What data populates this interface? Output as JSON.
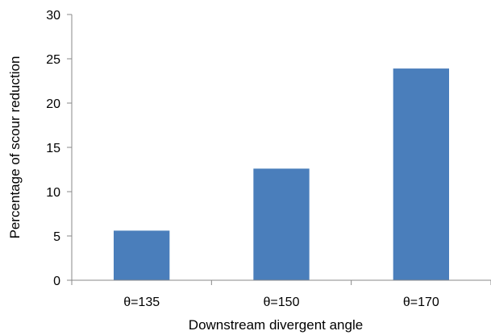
{
  "chart_data": {
    "type": "bar",
    "categories": [
      "θ=135",
      "θ=150",
      "θ=170"
    ],
    "values": [
      5.6,
      12.6,
      23.9
    ],
    "xlabel": "Downstream divergent angle",
    "ylabel": "Percentage of scour reduction",
    "ylim": [
      0,
      30
    ],
    "yticks": [
      0,
      5,
      10,
      15,
      20,
      25,
      30
    ],
    "grid": false,
    "legend": "none",
    "bar_color": "#4a7ebb"
  }
}
